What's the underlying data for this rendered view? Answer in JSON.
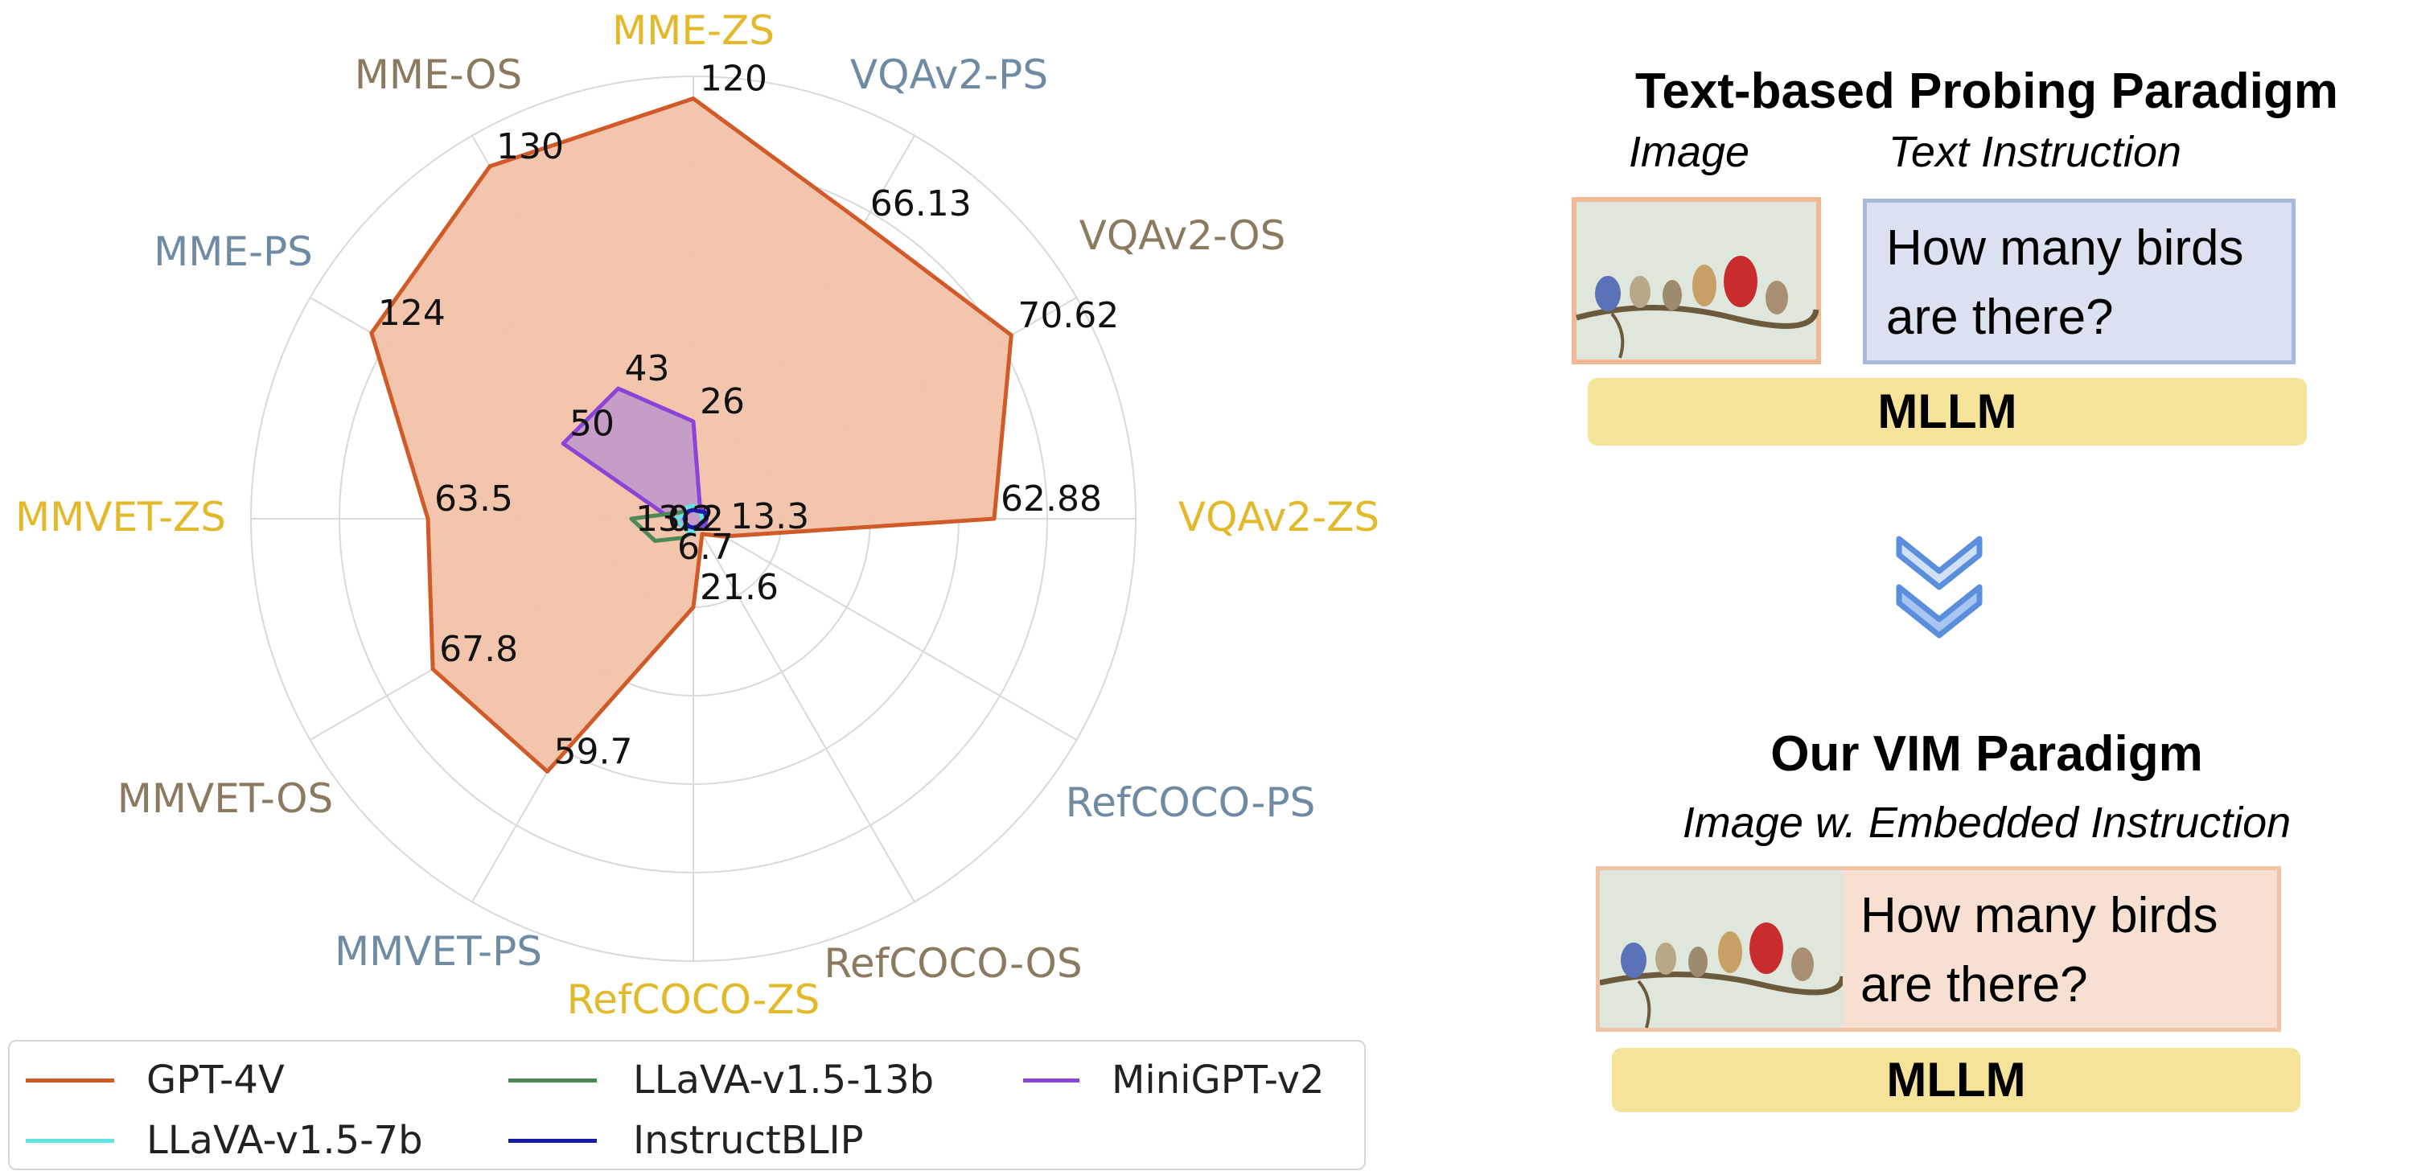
{
  "chart_data": {
    "type": "radar",
    "axes": [
      "VQAv2-ZS",
      "VQAv2-OS",
      "VQAv2-PS",
      "MME-ZS",
      "MME-OS",
      "MME-PS",
      "MMVET-ZS",
      "MMVET-OS",
      "MMVET-PS",
      "RefCOCO-ZS",
      "RefCOCO-OS",
      "RefCOCO-PS"
    ],
    "axis_colors": [
      "#e3b92c",
      "#8c7a60",
      "#6f8aa3",
      "#e3b92c",
      "#8c7a60",
      "#6f8aa3",
      "#e3b92c",
      "#8c7a60",
      "#6f8aa3",
      "#e3b92c",
      "#8c7a60",
      "#6f8aa3"
    ],
    "series": [
      {
        "name": "GPT-4V",
        "color": "#d05a28",
        "fill": "#f2c2a8",
        "r": [
          0.68,
          0.83,
          0.77,
          0.95,
          0.92,
          0.84,
          0.6,
          0.68,
          0.66,
          0.2,
          0.04,
          0.08
        ],
        "labels": [
          "62.88",
          "70.62",
          "66.13",
          "120",
          "130",
          "124",
          "63.5",
          "67.8",
          "59.7",
          "21.6",
          "",
          "13.3"
        ]
      },
      {
        "name": "MiniGPT-v2",
        "color": "#8a44d6",
        "fill": "#b78fcf",
        "r": [
          0.03,
          0.03,
          0.03,
          0.22,
          0.34,
          0.34,
          0.05,
          0.03,
          0.03,
          0.02,
          0.02,
          0.03
        ],
        "labels": [
          "",
          "",
          "",
          "26",
          "43",
          "50",
          "",
          "",
          "",
          "",
          "",
          ""
        ]
      },
      {
        "name": "LLaVA-v1.5-13b",
        "color": "#4a8a55",
        "fill": "none",
        "r": [
          0.02,
          0.02,
          0.02,
          0.03,
          0.03,
          0.03,
          0.14,
          0.1,
          0.05,
          0.03,
          0.02,
          0.02
        ],
        "labels": [
          "",
          "",
          "",
          "",
          "",
          "",
          "",
          "",
          "",
          "",
          "",
          ""
        ]
      },
      {
        "name": "LLaVA-v1.5-7b",
        "color": "#67e3e3",
        "fill": "none",
        "r": [
          0.02,
          0.02,
          0.02,
          0.03,
          0.03,
          0.02,
          0.04,
          0.03,
          0.03,
          0.03,
          0.02,
          0.02
        ],
        "labels": [
          "",
          "",
          "",
          "",
          "",
          "",
          "",
          "",
          "",
          "",
          "",
          ""
        ]
      },
      {
        "name": "InstructBLIP",
        "color": "#1a1aa8",
        "fill": "none",
        "r": [
          0.03,
          0.03,
          0.02,
          0.02,
          0.02,
          0.02,
          0.02,
          0.02,
          0.02,
          0.02,
          0.02,
          0.02
        ],
        "labels": [
          "",
          "",
          "",
          "",
          "",
          "",
          "",
          "",
          "",
          "",
          "",
          ""
        ]
      }
    ],
    "center_labels": [
      "13.2",
      "0.2",
      "6.7"
    ],
    "grid_rings": 5,
    "legend": {
      "placement": "bottom"
    }
  },
  "right_panel": {
    "top_title": "Text-based Probing Paradigm",
    "image_caption": "Image",
    "text_caption": "Text Instruction",
    "question_line1": "How many birds",
    "question_line2": "are there?",
    "mllm_label": "MLLM",
    "bottom_title": "Our VIM Paradigm",
    "bottom_caption": "Image w. Embedded Instruction",
    "bottom_question_line1": "How many birds",
    "bottom_question_line2": "are there?",
    "bottom_mllm_label": "MLLM",
    "colors": {
      "text_box_bg": "#dce1f1",
      "text_box_border": "#a9b9de",
      "image_border": "#f0b894",
      "vim_box_bg": "#f7e0d2",
      "vim_box_border": "#f0c3a6",
      "mllm_bg": "#f6e39a",
      "arrow": "#5b8fdd"
    }
  }
}
